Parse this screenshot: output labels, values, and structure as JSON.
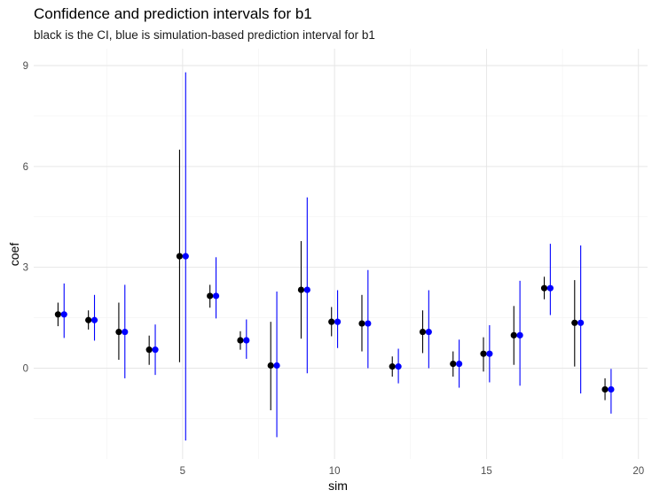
{
  "chart_data": {
    "type": "scatter",
    "title": "Confidence and prediction intervals for b1",
    "subtitle": "black is the CI, blue is simulation-based prediction interval for b1",
    "xlabel": "sim",
    "ylabel": "coef",
    "xlim": [
      0.1,
      20.3
    ],
    "ylim": [
      -2.7,
      9.5
    ],
    "x_ticks": [
      5,
      10,
      15,
      20
    ],
    "y_ticks": [
      0,
      3,
      6,
      9
    ],
    "grid": true,
    "colors": {
      "ci": "#000000",
      "pi": "#0000ff"
    },
    "series": [
      {
        "name": "CI",
        "color": "#000000",
        "points": [
          {
            "sim": 1,
            "estimate": 1.6,
            "lower": 1.25,
            "upper": 1.95
          },
          {
            "sim": 2,
            "estimate": 1.43,
            "lower": 1.15,
            "upper": 1.72
          },
          {
            "sim": 3,
            "estimate": 1.08,
            "lower": 0.25,
            "upper": 1.95
          },
          {
            "sim": 4,
            "estimate": 0.55,
            "lower": 0.1,
            "upper": 0.97
          },
          {
            "sim": 5,
            "estimate": 3.33,
            "lower": 0.18,
            "upper": 6.5
          },
          {
            "sim": 6,
            "estimate": 2.15,
            "lower": 1.8,
            "upper": 2.48
          },
          {
            "sim": 7,
            "estimate": 0.83,
            "lower": 0.55,
            "upper": 1.1
          },
          {
            "sim": 8,
            "estimate": 0.08,
            "lower": -1.25,
            "upper": 1.38
          },
          {
            "sim": 9,
            "estimate": 2.33,
            "lower": 0.88,
            "upper": 3.78
          },
          {
            "sim": 10,
            "estimate": 1.38,
            "lower": 0.95,
            "upper": 1.82
          },
          {
            "sim": 11,
            "estimate": 1.33,
            "lower": 0.5,
            "upper": 2.18
          },
          {
            "sim": 12,
            "estimate": 0.05,
            "lower": -0.25,
            "upper": 0.35
          },
          {
            "sim": 13,
            "estimate": 1.08,
            "lower": 0.45,
            "upper": 1.72
          },
          {
            "sim": 14,
            "estimate": 0.13,
            "lower": -0.25,
            "upper": 0.5
          },
          {
            "sim": 15,
            "estimate": 0.43,
            "lower": -0.1,
            "upper": 0.92
          },
          {
            "sim": 16,
            "estimate": 0.98,
            "lower": 0.1,
            "upper": 1.85
          },
          {
            "sim": 17,
            "estimate": 2.38,
            "lower": 2.05,
            "upper": 2.72
          },
          {
            "sim": 18,
            "estimate": 1.35,
            "lower": 0.05,
            "upper": 2.62
          },
          {
            "sim": 19,
            "estimate": -0.63,
            "lower": -0.95,
            "upper": -0.3
          }
        ]
      },
      {
        "name": "Prediction interval",
        "color": "#0000ff",
        "points": [
          {
            "sim": 1,
            "estimate": 1.6,
            "lower": 0.9,
            "upper": 2.52
          },
          {
            "sim": 2,
            "estimate": 1.43,
            "lower": 0.82,
            "upper": 2.18
          },
          {
            "sim": 3,
            "estimate": 1.08,
            "lower": -0.3,
            "upper": 2.48
          },
          {
            "sim": 4,
            "estimate": 0.55,
            "lower": -0.2,
            "upper": 1.3
          },
          {
            "sim": 5,
            "estimate": 3.33,
            "lower": -2.15,
            "upper": 8.8
          },
          {
            "sim": 6,
            "estimate": 2.15,
            "lower": 1.48,
            "upper": 3.3
          },
          {
            "sim": 7,
            "estimate": 0.83,
            "lower": 0.28,
            "upper": 1.45
          },
          {
            "sim": 8,
            "estimate": 0.08,
            "lower": -2.05,
            "upper": 2.28
          },
          {
            "sim": 9,
            "estimate": 2.33,
            "lower": -0.15,
            "upper": 5.08
          },
          {
            "sim": 10,
            "estimate": 1.38,
            "lower": 0.6,
            "upper": 2.32
          },
          {
            "sim": 11,
            "estimate": 1.33,
            "lower": 0.0,
            "upper": 2.92
          },
          {
            "sim": 12,
            "estimate": 0.05,
            "lower": -0.45,
            "upper": 0.58
          },
          {
            "sim": 13,
            "estimate": 1.08,
            "lower": 0.0,
            "upper": 2.32
          },
          {
            "sim": 14,
            "estimate": 0.13,
            "lower": -0.58,
            "upper": 0.85
          },
          {
            "sim": 15,
            "estimate": 0.43,
            "lower": -0.42,
            "upper": 1.28
          },
          {
            "sim": 16,
            "estimate": 0.98,
            "lower": -0.52,
            "upper": 2.6
          },
          {
            "sim": 17,
            "estimate": 2.38,
            "lower": 1.58,
            "upper": 3.7
          },
          {
            "sim": 18,
            "estimate": 1.35,
            "lower": -0.75,
            "upper": 3.65
          },
          {
            "sim": 19,
            "estimate": -0.63,
            "lower": -1.35,
            "upper": -0.02
          }
        ]
      }
    ]
  }
}
